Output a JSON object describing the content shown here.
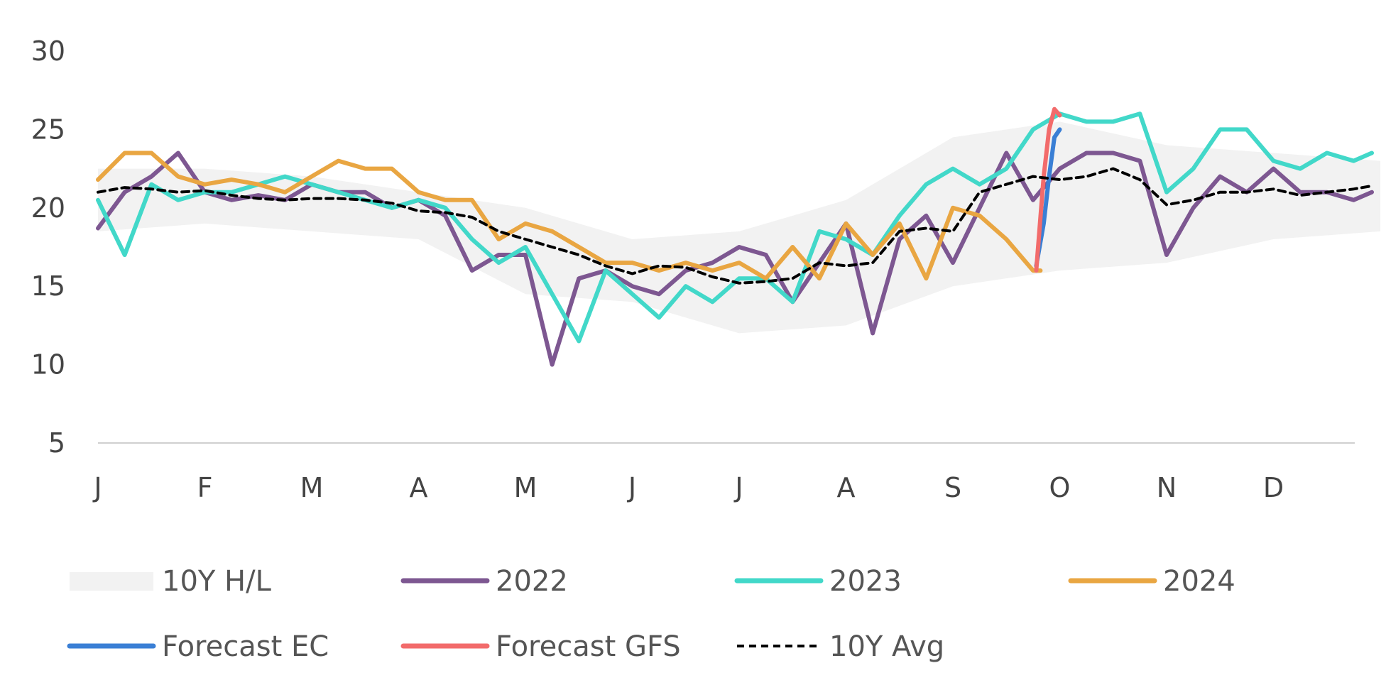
{
  "chart_data": {
    "type": "line",
    "title": "",
    "xlabel": "",
    "ylabel": "",
    "ylim": [
      5,
      30
    ],
    "y_ticks": [
      "30",
      "25",
      "20",
      "15",
      "10",
      "5"
    ],
    "x_ticks": [
      "J",
      "F",
      "M",
      "A",
      "M",
      "J",
      "J",
      "A",
      "S",
      "O",
      "N",
      "D"
    ],
    "grid": false,
    "legend_position": "bottom",
    "series": [
      {
        "name": "10Y H/L",
        "kind": "band",
        "color": "#f2f2f2",
        "x": [
          1,
          2,
          3,
          4,
          5,
          6,
          7,
          8,
          9,
          10,
          11,
          12,
          13
        ],
        "low": [
          18.5,
          19.0,
          18.5,
          18.0,
          14.5,
          14.0,
          12.0,
          12.5,
          15.0,
          16.0,
          16.5,
          18.0,
          18.5
        ],
        "high": [
          22.5,
          22.5,
          22.0,
          21.0,
          20.0,
          18.0,
          18.5,
          20.5,
          24.5,
          25.5,
          24.0,
          23.5,
          23.0
        ]
      },
      {
        "name": "2022",
        "kind": "line",
        "color": "#7d5791",
        "x": [
          1,
          1.25,
          1.5,
          1.75,
          2,
          2.25,
          2.5,
          2.75,
          3,
          3.25,
          3.5,
          3.75,
          4,
          4.25,
          4.5,
          4.75,
          5,
          5.25,
          5.5,
          5.75,
          6,
          6.25,
          6.5,
          6.75,
          7,
          7.25,
          7.5,
          7.75,
          8,
          8.25,
          8.5,
          8.75,
          9,
          9.25,
          9.5,
          9.75,
          10,
          10.25,
          10.5,
          10.75,
          11,
          11.25,
          11.5,
          11.75,
          12,
          12.25,
          12.5,
          12.75,
          12.92
        ],
        "values": [
          18.7,
          21.0,
          22.0,
          23.5,
          21.0,
          20.5,
          20.8,
          20.5,
          21.5,
          21.0,
          21.0,
          20.0,
          20.5,
          19.5,
          16.0,
          17.0,
          17.0,
          10.0,
          15.5,
          16.0,
          15.0,
          14.5,
          16.0,
          16.5,
          17.5,
          17.0,
          14.0,
          16.5,
          19.0,
          12.0,
          18.0,
          19.5,
          16.5,
          20.0,
          23.5,
          20.5,
          22.5,
          23.5,
          23.5,
          23.0,
          17.0,
          20.0,
          22.0,
          21.0,
          22.5,
          21.0,
          21.0,
          20.5,
          21.0
        ]
      },
      {
        "name": "2023",
        "kind": "line",
        "color": "#42d8c9",
        "x": [
          1,
          1.25,
          1.5,
          1.75,
          2,
          2.25,
          2.5,
          2.75,
          3,
          3.25,
          3.5,
          3.75,
          4,
          4.25,
          4.5,
          4.75,
          5,
          5.25,
          5.5,
          5.75,
          6,
          6.25,
          6.5,
          6.75,
          7,
          7.25,
          7.5,
          7.75,
          8,
          8.25,
          8.5,
          8.75,
          9,
          9.25,
          9.5,
          9.75,
          10,
          10.25,
          10.5,
          10.75,
          11,
          11.25,
          11.5,
          11.75,
          12,
          12.25,
          12.5,
          12.75,
          12.92
        ],
        "values": [
          20.5,
          17.0,
          21.5,
          20.5,
          21.0,
          21.0,
          21.5,
          22.0,
          21.5,
          21.0,
          20.5,
          20.0,
          20.5,
          20.0,
          18.0,
          16.5,
          17.5,
          14.5,
          11.5,
          16.0,
          14.5,
          13.0,
          15.0,
          14.0,
          15.5,
          15.5,
          14.0,
          18.5,
          18.0,
          17.0,
          19.5,
          21.5,
          22.5,
          21.5,
          22.5,
          25.0,
          26.0,
          25.5,
          25.5,
          26.0,
          21.0,
          22.5,
          25.0,
          25.0,
          23.0,
          22.5,
          23.5,
          23.0,
          23.5
        ]
      },
      {
        "name": "2024",
        "kind": "line",
        "color": "#e9a642",
        "x": [
          1,
          1.25,
          1.5,
          1.75,
          2,
          2.25,
          2.5,
          2.75,
          3,
          3.25,
          3.5,
          3.75,
          4,
          4.25,
          4.5,
          4.75,
          5,
          5.25,
          5.5,
          5.75,
          6,
          6.25,
          6.5,
          6.75,
          7,
          7.25,
          7.5,
          7.75,
          8,
          8.25,
          8.5,
          8.75,
          9,
          9.25,
          9.5,
          9.75,
          9.82
        ],
        "values": [
          21.8,
          23.5,
          23.5,
          22.0,
          21.5,
          21.8,
          21.5,
          21.0,
          22.0,
          23.0,
          22.5,
          22.5,
          21.0,
          20.5,
          20.5,
          18.0,
          19.0,
          18.5,
          17.5,
          16.5,
          16.5,
          16.0,
          16.5,
          16.0,
          16.5,
          15.5,
          17.5,
          15.5,
          19.0,
          17.0,
          19.0,
          15.5,
          20.0,
          19.5,
          18.0,
          16.0,
          16.0
        ]
      },
      {
        "name": "Forecast EC",
        "kind": "line",
        "color": "#3a7fd5",
        "x": [
          9.78,
          9.85,
          9.9,
          9.95,
          10.0
        ],
        "values": [
          16.3,
          19.0,
          22.0,
          24.5,
          25.0
        ]
      },
      {
        "name": "Forecast GFS",
        "kind": "line",
        "color": "#f26b6b",
        "x": [
          9.78,
          9.85,
          9.9,
          9.95,
          10.0
        ],
        "values": [
          16.0,
          22.0,
          25.0,
          26.3,
          25.9
        ]
      },
      {
        "name": "10Y Avg",
        "kind": "dashed",
        "color": "#000000",
        "x": [
          1,
          1.25,
          1.5,
          1.75,
          2,
          2.25,
          2.5,
          2.75,
          3,
          3.25,
          3.5,
          3.75,
          4,
          4.25,
          4.5,
          4.75,
          5,
          5.25,
          5.5,
          5.75,
          6,
          6.25,
          6.5,
          6.75,
          7,
          7.25,
          7.5,
          7.75,
          8,
          8.25,
          8.5,
          8.75,
          9,
          9.25,
          9.5,
          9.75,
          10,
          10.25,
          10.5,
          10.75,
          11,
          11.25,
          11.5,
          11.75,
          12,
          12.25,
          12.5,
          12.75,
          12.92
        ],
        "values": [
          21.0,
          21.3,
          21.2,
          21.0,
          21.1,
          20.8,
          20.6,
          20.5,
          20.6,
          20.6,
          20.5,
          20.3,
          19.8,
          19.7,
          19.4,
          18.5,
          18.0,
          17.5,
          17.0,
          16.3,
          15.8,
          16.3,
          16.2,
          15.6,
          15.2,
          15.3,
          15.5,
          16.5,
          16.3,
          16.5,
          18.5,
          18.7,
          18.5,
          21.0,
          21.5,
          22.0,
          21.8,
          22.0,
          22.5,
          21.8,
          20.2,
          20.5,
          21.0,
          21.0,
          21.2,
          20.8,
          21.0,
          21.2,
          21.4
        ]
      }
    ]
  }
}
